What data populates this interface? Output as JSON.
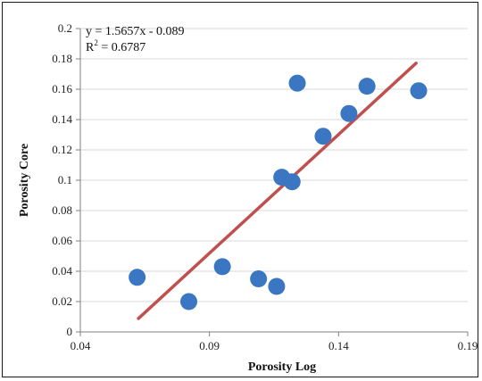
{
  "chart_data": {
    "type": "scatter",
    "title": "",
    "xlabel": "Porosity Log",
    "ylabel": "Porosity Core",
    "xlim": [
      0.04,
      0.19
    ],
    "ylim": [
      0,
      0.2
    ],
    "x_ticks": [
      "0.04",
      "0.09",
      "0.14",
      "0.19"
    ],
    "x_tick_values": [
      0.04,
      0.09,
      0.14,
      0.19
    ],
    "y_ticks": [
      "0",
      "0.02",
      "0.04",
      "0.06",
      "0.08",
      "0.1",
      "0.12",
      "0.14",
      "0.16",
      "0.18",
      "0.2"
    ],
    "y_tick_values": [
      0,
      0.02,
      0.04,
      0.06,
      0.08,
      0.1,
      0.12,
      0.14,
      0.16,
      0.18,
      0.2
    ],
    "grid": "horizontal",
    "series": [
      {
        "color": "#3b76c3",
        "points": [
          {
            "x": 0.062,
            "y": 0.036
          },
          {
            "x": 0.082,
            "y": 0.02
          },
          {
            "x": 0.095,
            "y": 0.043
          },
          {
            "x": 0.109,
            "y": 0.035
          },
          {
            "x": 0.116,
            "y": 0.03
          },
          {
            "x": 0.118,
            "y": 0.102
          },
          {
            "x": 0.122,
            "y": 0.099
          },
          {
            "x": 0.124,
            "y": 0.164
          },
          {
            "x": 0.134,
            "y": 0.129
          },
          {
            "x": 0.144,
            "y": 0.144
          },
          {
            "x": 0.151,
            "y": 0.162
          },
          {
            "x": 0.171,
            "y": 0.159
          }
        ]
      }
    ],
    "trendline": {
      "color": "#c0504d",
      "slope": 1.5657,
      "intercept": -0.089,
      "x_start": 0.0625,
      "x_end": 0.17
    },
    "annotations": {
      "equation": "y = 1.5657x - 0.089",
      "r2_prefix": "R",
      "r2_sup": "2",
      "r2_value": " = 0.6787"
    }
  }
}
